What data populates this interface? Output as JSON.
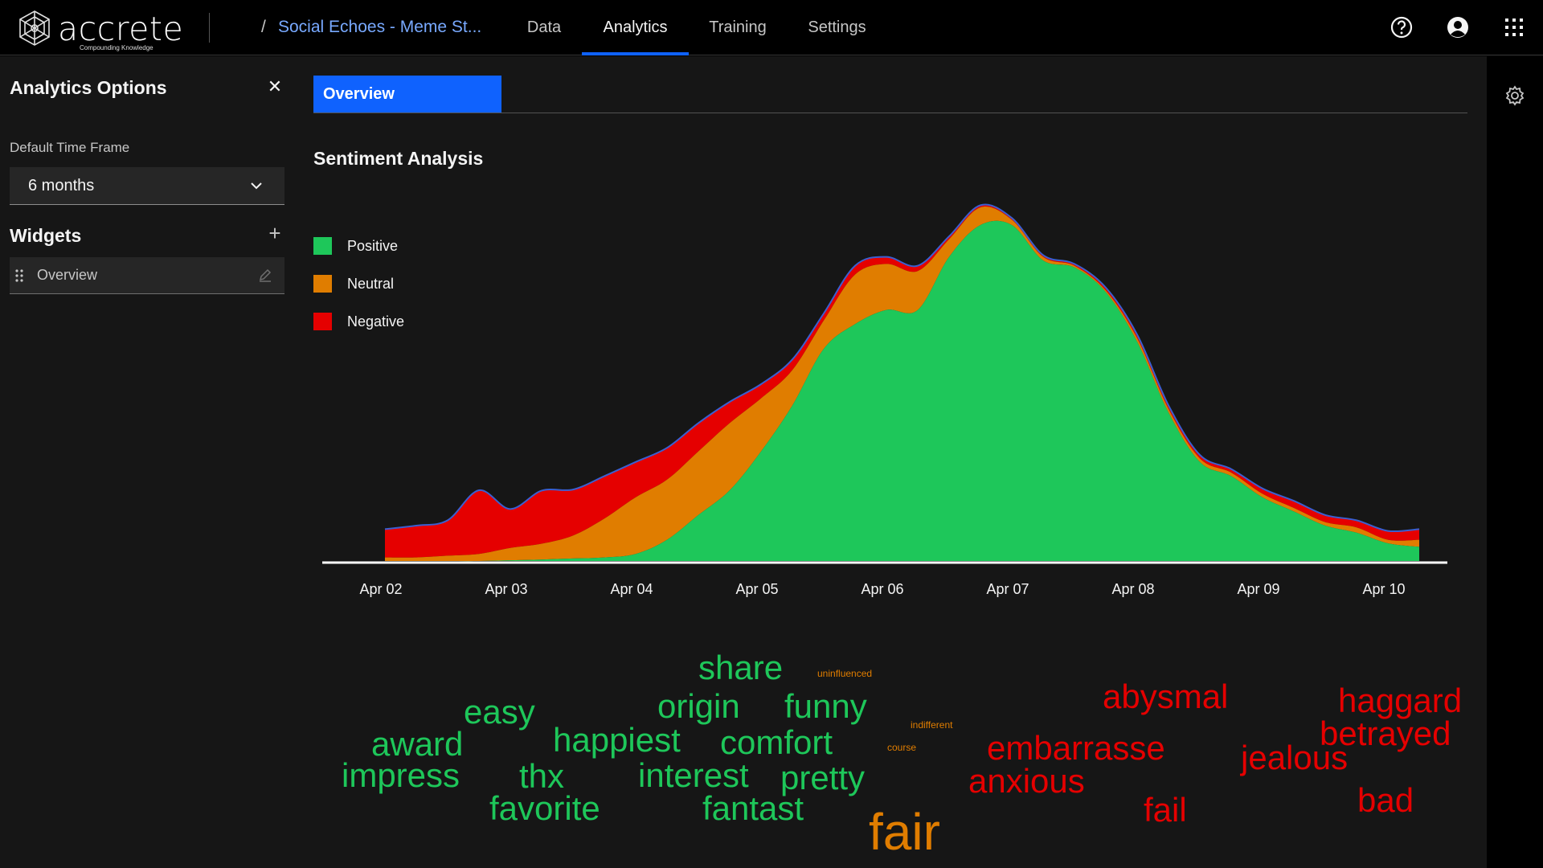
{
  "app": {
    "logo_word": "accrete",
    "logo_tagline": "Compounding Knowledge",
    "breadcrumb_sep": "/",
    "breadcrumb": "Social Echoes - Meme St..."
  },
  "nav": {
    "tabs": [
      {
        "label": "Data",
        "active": false
      },
      {
        "label": "Analytics",
        "active": true
      },
      {
        "label": "Training",
        "active": false
      },
      {
        "label": "Settings",
        "active": false
      }
    ],
    "icons": [
      "help-icon",
      "user-avatar-icon",
      "app-switcher-icon"
    ]
  },
  "sidebar": {
    "title": "Analytics Options",
    "close_icon": "close-icon",
    "time_frame_label": "Default Time Frame",
    "time_frame_value": "6 months",
    "widgets_title": "Widgets",
    "widgets_add_icon": "add-icon",
    "widgets": [
      {
        "label": "Overview",
        "icons": [
          "drag-handle-icon",
          "edit-icon"
        ]
      }
    ]
  },
  "main": {
    "tabs": [
      {
        "label": "Overview",
        "active": true
      }
    ],
    "settings_icon": "gear-icon",
    "section_title": "Sentiment Analysis"
  },
  "colors": {
    "accent": "#0f62fe",
    "link": "#78a9ff",
    "positive": "#1ec75a",
    "neutral": "#e07d00",
    "negative": "#e50000",
    "outline": "#3a5fd1"
  },
  "chart_data": {
    "type": "area",
    "stacked": true,
    "title": "Sentiment Analysis",
    "xlabel": "",
    "ylabel": "",
    "x_ticks": [
      "Apr 02",
      "Apr 03",
      "Apr 04",
      "Apr 05",
      "Apr 06",
      "Apr 07",
      "Apr 08",
      "Apr 09",
      "Apr 10"
    ],
    "x": [
      0,
      0.25,
      0.5,
      0.75,
      1,
      1.25,
      1.5,
      1.75,
      2,
      2.25,
      2.5,
      2.75,
      3,
      3.25,
      3.5,
      3.75,
      4,
      4.25,
      4.5,
      4.75,
      5,
      5.25,
      5.5,
      5.75,
      6,
      6.25,
      6.5,
      6.75,
      7,
      7.25,
      7.5,
      7.75,
      8,
      8.25
    ],
    "legend": "left",
    "grid": false,
    "series": [
      {
        "name": "Positive",
        "color": "#1ec75a",
        "values": [
          0.0,
          0.0,
          0.0,
          0.0,
          0.2,
          0.4,
          0.7,
          1.0,
          2.0,
          6.0,
          13.0,
          20.0,
          31.0,
          44.0,
          60.0,
          67.0,
          71.0,
          71.0,
          86.0,
          95.0,
          95.0,
          85.0,
          83.0,
          76.0,
          62.0,
          42.0,
          28.0,
          24.0,
          18.0,
          14.0,
          10.0,
          8.0,
          5.0,
          4.0
        ]
      },
      {
        "name": "Neutral",
        "color": "#e07d00",
        "values": [
          1.0,
          1.0,
          1.5,
          2.0,
          3.5,
          4.5,
          6.5,
          11.0,
          16.0,
          17.0,
          18.0,
          19.0,
          15.0,
          10.0,
          8.0,
          14.0,
          13.0,
          11.0,
          5.0,
          5.0,
          1.5,
          1.0,
          0.5,
          0.5,
          1.0,
          1.0,
          1.0,
          1.0,
          1.0,
          1.0,
          1.0,
          1.5,
          1.0,
          2.0
        ]
      },
      {
        "name": "Negative",
        "color": "#e50000",
        "values": [
          8.0,
          9.0,
          10.0,
          18.0,
          11.0,
          15.0,
          13.0,
          12.0,
          10.0,
          9.0,
          8.0,
          6.0,
          4.0,
          3.0,
          2.0,
          2.5,
          2.0,
          1.5,
          0.8,
          0.6,
          0.5,
          0.5,
          0.5,
          0.8,
          1.0,
          1.0,
          1.0,
          1.0,
          1.5,
          2.0,
          2.0,
          2.0,
          2.5,
          3.0
        ]
      }
    ],
    "ylim": [
      0,
      100
    ],
    "word_cloud": [
      {
        "text": "share",
        "sentiment": "positive",
        "weight": 42
      },
      {
        "text": "uninfluenced",
        "sentiment": "neutral",
        "weight": 12
      },
      {
        "text": "easy",
        "sentiment": "positive",
        "weight": 42
      },
      {
        "text": "origin",
        "sentiment": "positive",
        "weight": 42
      },
      {
        "text": "funny",
        "sentiment": "positive",
        "weight": 42
      },
      {
        "text": "award",
        "sentiment": "positive",
        "weight": 42
      },
      {
        "text": "happiest",
        "sentiment": "positive",
        "weight": 42
      },
      {
        "text": "comfort",
        "sentiment": "positive",
        "weight": 42
      },
      {
        "text": "indifferent",
        "sentiment": "neutral",
        "weight": 12
      },
      {
        "text": "course",
        "sentiment": "neutral",
        "weight": 12
      },
      {
        "text": "impress",
        "sentiment": "positive",
        "weight": 42
      },
      {
        "text": "thx",
        "sentiment": "positive",
        "weight": 42
      },
      {
        "text": "interest",
        "sentiment": "positive",
        "weight": 42
      },
      {
        "text": "pretty",
        "sentiment": "positive",
        "weight": 42
      },
      {
        "text": "favorite",
        "sentiment": "positive",
        "weight": 42
      },
      {
        "text": "fantast",
        "sentiment": "positive",
        "weight": 42
      },
      {
        "text": "fair",
        "sentiment": "neutral",
        "weight": 64
      },
      {
        "text": "abysmal",
        "sentiment": "negative",
        "weight": 42
      },
      {
        "text": "haggard",
        "sentiment": "negative",
        "weight": 42
      },
      {
        "text": "betrayed",
        "sentiment": "negative",
        "weight": 42
      },
      {
        "text": "embarrasse",
        "sentiment": "negative",
        "weight": 42
      },
      {
        "text": "jealous",
        "sentiment": "negative",
        "weight": 42
      },
      {
        "text": "anxious",
        "sentiment": "negative",
        "weight": 42
      },
      {
        "text": "bad",
        "sentiment": "negative",
        "weight": 42
      },
      {
        "text": "fail",
        "sentiment": "negative",
        "weight": 42
      }
    ]
  }
}
